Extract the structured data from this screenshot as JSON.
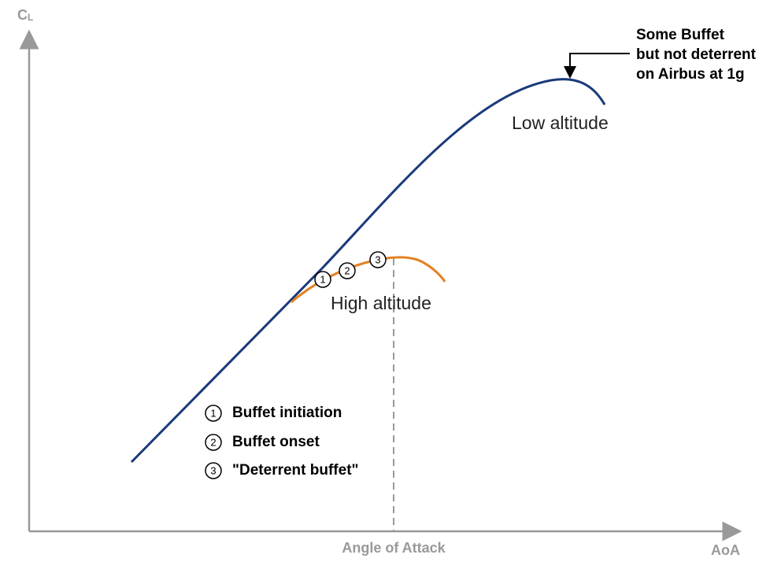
{
  "y_axis": {
    "label": "C",
    "subscript": "L"
  },
  "x_axis": {
    "label": "AoA",
    "center_label": "Angle of Attack"
  },
  "annotation": {
    "lines": [
      "Some Buffet",
      "but not deterrent",
      "on Airbus at 1g"
    ]
  },
  "curves": {
    "low": "Low altitude",
    "high": "High altitude"
  },
  "markers": [
    "1",
    "2",
    "3"
  ],
  "legend": [
    {
      "number": "1",
      "text": "Buffet initiation"
    },
    {
      "number": "2",
      "text": "Buffet onset"
    },
    {
      "number": "3",
      "text": "\"Deterrent buffet\""
    }
  ]
}
